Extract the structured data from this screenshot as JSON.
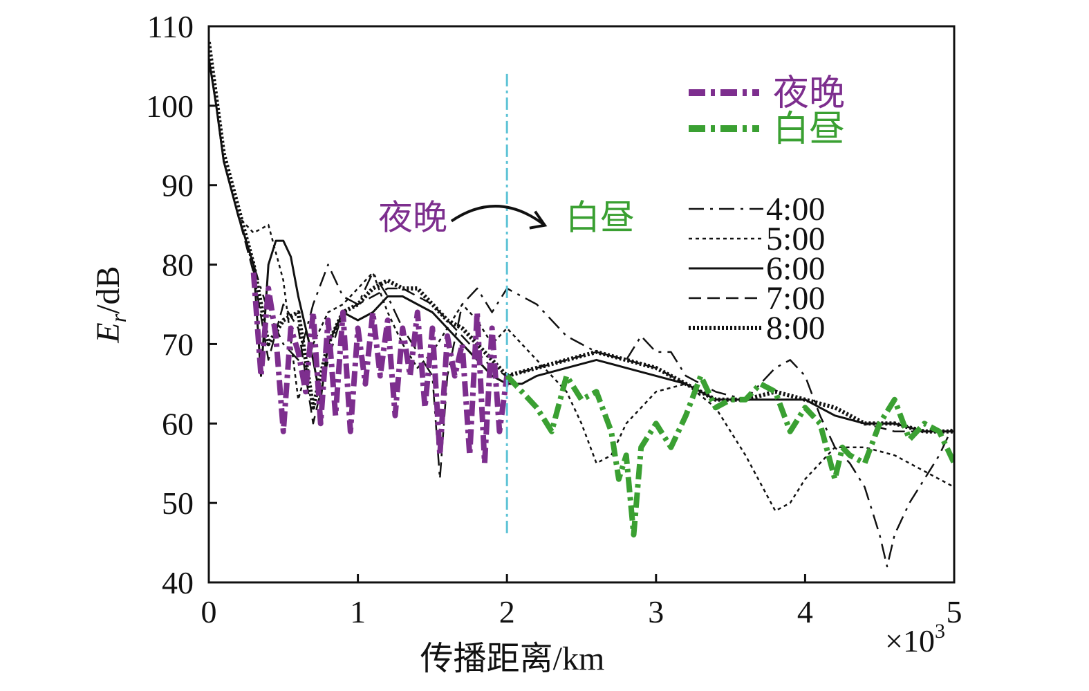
{
  "chart_data": {
    "type": "line",
    "title": "",
    "xlabel": "传播距离/km",
    "ylabel_main": "E",
    "ylabel_sub": "r",
    "ylabel_unit": "/dB",
    "x_multiplier_base": "×10",
    "x_multiplier_exp": "3",
    "xlim": [
      0,
      5
    ],
    "ylim": [
      40,
      110
    ],
    "x_ticks": [
      {
        "value": 0,
        "label": "0"
      },
      {
        "value": 1,
        "label": "1"
      },
      {
        "value": 2,
        "label": "2"
      },
      {
        "value": 3,
        "label": "3"
      },
      {
        "value": 4,
        "label": "4"
      },
      {
        "value": 5,
        "label": "5"
      }
    ],
    "y_ticks": [
      {
        "value": 40,
        "label": "40"
      },
      {
        "value": 50,
        "label": "50"
      },
      {
        "value": 60,
        "label": "60"
      },
      {
        "value": 70,
        "label": "70"
      },
      {
        "value": 80,
        "label": "80"
      },
      {
        "value": 90,
        "label": "90"
      },
      {
        "value": 100,
        "label": "100"
      },
      {
        "value": 110,
        "label": "110"
      }
    ],
    "grid": false,
    "legend_color_position": "top-right",
    "legend_time_position": "right",
    "boundary_x": 2.0,
    "colors": {
      "night": "#7d2e8e",
      "day": "#3aa032",
      "boundary": "#5ec3d6",
      "black": "#111111"
    },
    "color_legend": [
      {
        "label": "夜晚",
        "color": "#7d2e8e"
      },
      {
        "label": "白昼",
        "color": "#3aa032"
      }
    ],
    "annotation": {
      "left_label": "夜晚",
      "right_label": "白昼",
      "left_color": "#7d2e8e",
      "right_color": "#3aa032",
      "arrow_from_x": 1.6,
      "arrow_to_x": 2.3,
      "y": 86
    },
    "series": [
      {
        "name": "4:00",
        "style": "dashdot",
        "x": [
          0,
          0.05,
          0.1,
          0.2,
          0.3,
          0.4,
          0.5,
          0.6,
          0.7,
          0.8,
          0.9,
          1.0,
          1.1,
          1.2,
          1.3,
          1.4,
          1.5,
          1.55,
          1.6,
          1.7,
          1.8,
          1.9,
          2.0,
          2.2,
          2.4,
          2.6,
          2.8,
          2.9,
          3.0,
          3.1,
          3.2,
          3.4,
          3.6,
          3.8,
          3.9,
          4.0,
          4.1,
          4.2,
          4.3,
          4.4,
          4.5,
          4.55,
          4.6,
          4.7,
          4.8,
          4.9,
          5.0
        ],
        "y": [
          106,
          100,
          93,
          86,
          80,
          74,
          70,
          68,
          75,
          80,
          76,
          75,
          79,
          76,
          72,
          69,
          66,
          53,
          66,
          75,
          77,
          74,
          77,
          75,
          71,
          69,
          68,
          71,
          69,
          69,
          66,
          64,
          63,
          67,
          68,
          66,
          61,
          57,
          55,
          52,
          46,
          42,
          46,
          50,
          53,
          56,
          60
        ]
      },
      {
        "name": "5:00",
        "style": "dotted",
        "x": [
          0,
          0.05,
          0.1,
          0.2,
          0.3,
          0.4,
          0.5,
          0.6,
          0.7,
          0.8,
          0.9,
          1.0,
          1.1,
          1.2,
          1.3,
          1.4,
          1.5,
          1.6,
          1.7,
          1.8,
          1.9,
          2.0,
          2.2,
          2.4,
          2.5,
          2.6,
          2.7,
          2.8,
          3.0,
          3.2,
          3.4,
          3.6,
          3.8,
          3.9,
          4.0,
          4.2,
          4.4,
          4.6,
          4.8,
          5.0
        ],
        "y": [
          106,
          100,
          93,
          86,
          84,
          85,
          78,
          63,
          70,
          74,
          75,
          77,
          79,
          74,
          70,
          67,
          69,
          72,
          75,
          73,
          70,
          72,
          68,
          64,
          60,
          55,
          56,
          60,
          64,
          65,
          62,
          56,
          49,
          50,
          53,
          57,
          57,
          56,
          54,
          52
        ]
      },
      {
        "name": "6:00",
        "style": "solid",
        "x": [
          0,
          0.05,
          0.1,
          0.2,
          0.3,
          0.35,
          0.4,
          0.45,
          0.5,
          0.55,
          0.6,
          0.7,
          0.75,
          0.8,
          0.9,
          1.0,
          1.1,
          1.2,
          1.3,
          1.4,
          1.5,
          1.6,
          1.7,
          1.8,
          1.9,
          2.0,
          2.1,
          2.2,
          2.4,
          2.6,
          2.8,
          3.0,
          3.2,
          3.4,
          3.5,
          3.6,
          3.8,
          4.0,
          4.2,
          4.4,
          4.6,
          4.8,
          5.0
        ],
        "y": [
          106,
          100,
          93,
          86,
          80,
          66,
          80,
          83,
          83,
          81,
          76,
          68,
          63,
          70,
          74,
          73,
          74,
          76,
          76,
          75,
          74,
          72,
          70,
          68,
          66,
          65,
          65,
          66,
          67,
          68,
          67,
          66,
          65,
          63,
          63,
          63,
          63,
          63,
          61,
          60,
          60,
          59,
          59
        ]
      },
      {
        "name": "7:00",
        "style": "dashed",
        "x": [
          0,
          0.05,
          0.1,
          0.2,
          0.3,
          0.4,
          0.5,
          0.6,
          0.7,
          0.8,
          0.9,
          1.0,
          1.1,
          1.2,
          1.3,
          1.4,
          1.5,
          1.6,
          1.7,
          1.8,
          1.9,
          2.0,
          2.2,
          2.4,
          2.6,
          2.8,
          3.0,
          3.2,
          3.4,
          3.5,
          3.6,
          3.8,
          4.0,
          4.2,
          4.4,
          4.6,
          4.8,
          5.0
        ],
        "y": [
          106,
          100,
          93,
          86,
          79,
          68,
          75,
          72,
          60,
          68,
          74,
          75,
          76,
          77,
          77,
          76,
          75,
          73,
          71,
          69,
          67,
          66,
          67,
          68,
          69,
          68,
          67,
          65,
          63,
          63,
          63,
          63,
          63,
          61,
          60,
          59,
          59,
          59
        ]
      },
      {
        "name": "8:00",
        "style": "heavy-dotted",
        "x": [
          0,
          0.05,
          0.1,
          0.2,
          0.3,
          0.4,
          0.5,
          0.6,
          0.7,
          0.8,
          0.9,
          1.0,
          1.1,
          1.2,
          1.3,
          1.4,
          1.5,
          1.6,
          1.7,
          1.8,
          1.9,
          2.0,
          2.2,
          2.4,
          2.6,
          2.8,
          3.0,
          3.2,
          3.4,
          3.5,
          3.6,
          3.8,
          4.0,
          4.2,
          4.4,
          4.6,
          4.8,
          5.0
        ],
        "y": [
          108,
          101,
          94,
          87,
          80,
          70,
          73,
          74,
          62,
          70,
          74,
          75,
          77,
          78,
          77,
          77,
          75,
          73,
          72,
          70,
          68,
          66,
          67,
          68,
          69,
          68,
          67,
          65,
          63,
          63,
          63,
          64,
          63,
          62,
          60,
          60,
          59,
          59
        ]
      },
      {
        "name": "夜晚",
        "style": "thick-dashdot",
        "x": [
          0.3,
          0.35,
          0.4,
          0.45,
          0.5,
          0.55,
          0.6,
          0.65,
          0.7,
          0.75,
          0.8,
          0.85,
          0.9,
          0.95,
          1.0,
          1.05,
          1.1,
          1.15,
          1.2,
          1.25,
          1.3,
          1.35,
          1.4,
          1.45,
          1.5,
          1.55,
          1.6,
          1.65,
          1.7,
          1.75,
          1.8,
          1.85,
          1.9,
          1.95,
          2.0
        ],
        "y": [
          79,
          66,
          77,
          71,
          59,
          72,
          69,
          64,
          74,
          60,
          73,
          61,
          74,
          59,
          72,
          65,
          74,
          66,
          73,
          61,
          72,
          66,
          74,
          62,
          72,
          56,
          71,
          66,
          70,
          56,
          74,
          55,
          72,
          59,
          66
        ]
      },
      {
        "name": "白昼",
        "style": "thick-dashdot",
        "x": [
          2.0,
          2.1,
          2.2,
          2.3,
          2.4,
          2.5,
          2.6,
          2.7,
          2.75,
          2.8,
          2.85,
          2.9,
          3.0,
          3.1,
          3.2,
          3.3,
          3.4,
          3.5,
          3.6,
          3.7,
          3.8,
          3.9,
          4.0,
          4.1,
          4.2,
          4.25,
          4.3,
          4.4,
          4.5,
          4.6,
          4.7,
          4.8,
          4.9,
          5.0
        ],
        "y": [
          66,
          64,
          62,
          59,
          66,
          63,
          64,
          59,
          53,
          56,
          46,
          57,
          60,
          57,
          61,
          66,
          62,
          63,
          63,
          65,
          64,
          59,
          62,
          60,
          53,
          57,
          56,
          55,
          60,
          63,
          58,
          60,
          59,
          55
        ]
      }
    ]
  }
}
